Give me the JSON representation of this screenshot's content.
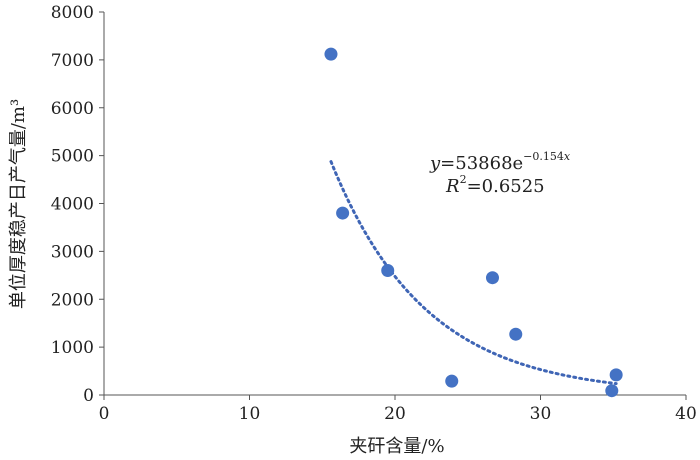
{
  "chart_data": {
    "type": "scatter",
    "title": "",
    "xlabel": "夹矸含量/%",
    "ylabel": "单位厚度稳产日产气量/m³",
    "xlim": [
      0,
      40
    ],
    "ylim": [
      0,
      8000
    ],
    "xticks": [
      "0",
      "10",
      "20",
      "30",
      "40"
    ],
    "yticks": [
      "0",
      "1000",
      "2000",
      "3000",
      "4000",
      "5000",
      "6000",
      "7000",
      "8000"
    ],
    "grid": false,
    "legend": "none",
    "marker_color": "#4472c4",
    "trendline_color": "#3f65b5",
    "points": [
      {
        "x": 15.6,
        "y": 7120
      },
      {
        "x": 16.4,
        "y": 3800
      },
      {
        "x": 19.5,
        "y": 2600
      },
      {
        "x": 23.9,
        "y": 290
      },
      {
        "x": 26.7,
        "y": 2450
      },
      {
        "x": 28.3,
        "y": 1270
      },
      {
        "x": 34.9,
        "y": 90
      },
      {
        "x": 35.2,
        "y": 420
      }
    ],
    "trendline": {
      "type": "exponential",
      "a": 53868,
      "b": -0.154,
      "x_range": [
        15.6,
        35.2
      ],
      "style": "dotted"
    },
    "annotation": {
      "eq_y": "y",
      "eq_base": "=53868e",
      "eq_exp_minus": "−0.154",
      "eq_exp_x": "x",
      "r2_label": "R",
      "r2_sup": "2",
      "r2_value": "=0.6525"
    }
  }
}
